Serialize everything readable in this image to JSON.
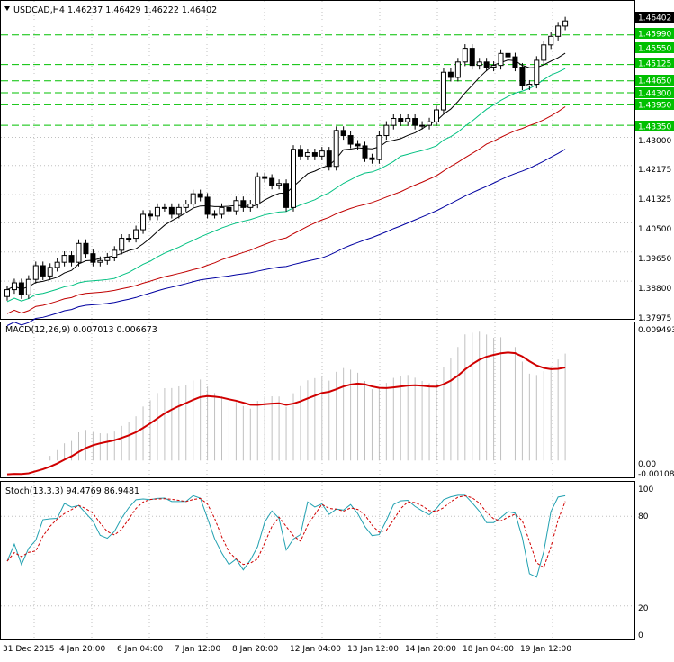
{
  "price_panel": {
    "header": "USDCAD,H4  1.46237 1.46429 1.46222 1.46402",
    "current_price": "1.46402",
    "level_tags": [
      "1.45990",
      "1.45550",
      "1.45125",
      "1.44650",
      "1.44300",
      "1.43950",
      "1.43350"
    ],
    "axis_ticks": [
      "1.43000",
      "1.42175",
      "1.41325",
      "1.40500",
      "1.39650",
      "1.38800",
      "1.37975"
    ]
  },
  "macd_panel": {
    "header": "MACD(12,26,9) 0.007013 0.006673",
    "axis_ticks": [
      "0.009493",
      "0.00",
      "-0.001085"
    ]
  },
  "stoch_panel": {
    "header": "Stoch(13,3,3) 94.4769 86.9481",
    "axis_ticks": [
      "100",
      "80",
      "20",
      "0"
    ]
  },
  "time_axis": [
    "31 Dec 2015",
    "4 Jan 20:00",
    "6 Jan 04:00",
    "7 Jan 12:00",
    "8 Jan 20:00",
    "12 Jan 04:00",
    "13 Jan 12:00",
    "14 Jan 20:00",
    "18 Jan 04:00",
    "19 Jan 12:00"
  ],
  "colors": {
    "background": "#ffffff",
    "grid": "#c0c0c0",
    "levels": "#00c000",
    "ma_black": "#000000",
    "ma_teal": "#00c080",
    "ma_red": "#c00000",
    "ma_blue": "#0000a0",
    "macd_histogram": "#c0c0c0",
    "macd_signal": "#d00000",
    "stoch_main": "#20a0b0",
    "stoch_signal": "#d00000"
  },
  "chart_data": [
    {
      "type": "candlestick",
      "title": "USDCAD,H4",
      "ohlc": [
        1.46237,
        1.46429,
        1.46222,
        1.46402
      ],
      "ylim": [
        1.3775,
        1.468
      ],
      "closes": [
        1.3855,
        1.3875,
        1.384,
        1.3885,
        1.3925,
        1.3895,
        1.392,
        1.3935,
        1.3955,
        1.3935,
        1.399,
        1.396,
        1.3935,
        1.394,
        1.395,
        1.397,
        1.4005,
        1.4005,
        1.403,
        1.4075,
        1.407,
        1.4095,
        1.4095,
        1.4075,
        1.4095,
        1.4105,
        1.4135,
        1.4125,
        1.4075,
        1.4075,
        1.4095,
        1.4085,
        1.4115,
        1.4095,
        1.4105,
        1.4185,
        1.418,
        1.416,
        1.4165,
        1.4095,
        1.4265,
        1.4245,
        1.4255,
        1.4245,
        1.426,
        1.4215,
        1.432,
        1.4305,
        1.428,
        1.4275,
        1.424,
        1.4235,
        1.4305,
        1.4335,
        1.4355,
        1.4345,
        1.4355,
        1.4335,
        1.4335,
        1.4345,
        1.438,
        1.449,
        1.4475,
        1.452,
        1.456,
        1.451,
        1.452,
        1.4505,
        1.451,
        1.4545,
        1.4535,
        1.4505,
        1.445,
        1.4455,
        1.4525,
        1.457,
        1.4595,
        1.4625,
        1.464
      ],
      "levels": [
        1.4599,
        1.4555,
        1.45125,
        1.4465,
        1.443,
        1.4395,
        1.4335
      ]
    },
    {
      "type": "histogram-line",
      "title": "MACD(12,26,9)",
      "values": [
        0.007013,
        0.006673
      ],
      "ylim": [
        -0.001085,
        0.009493
      ]
    },
    {
      "type": "line",
      "title": "Stoch(13,3,3)",
      "values": [
        94.4769,
        86.9481
      ],
      "ylim": [
        0,
        100
      ]
    }
  ]
}
